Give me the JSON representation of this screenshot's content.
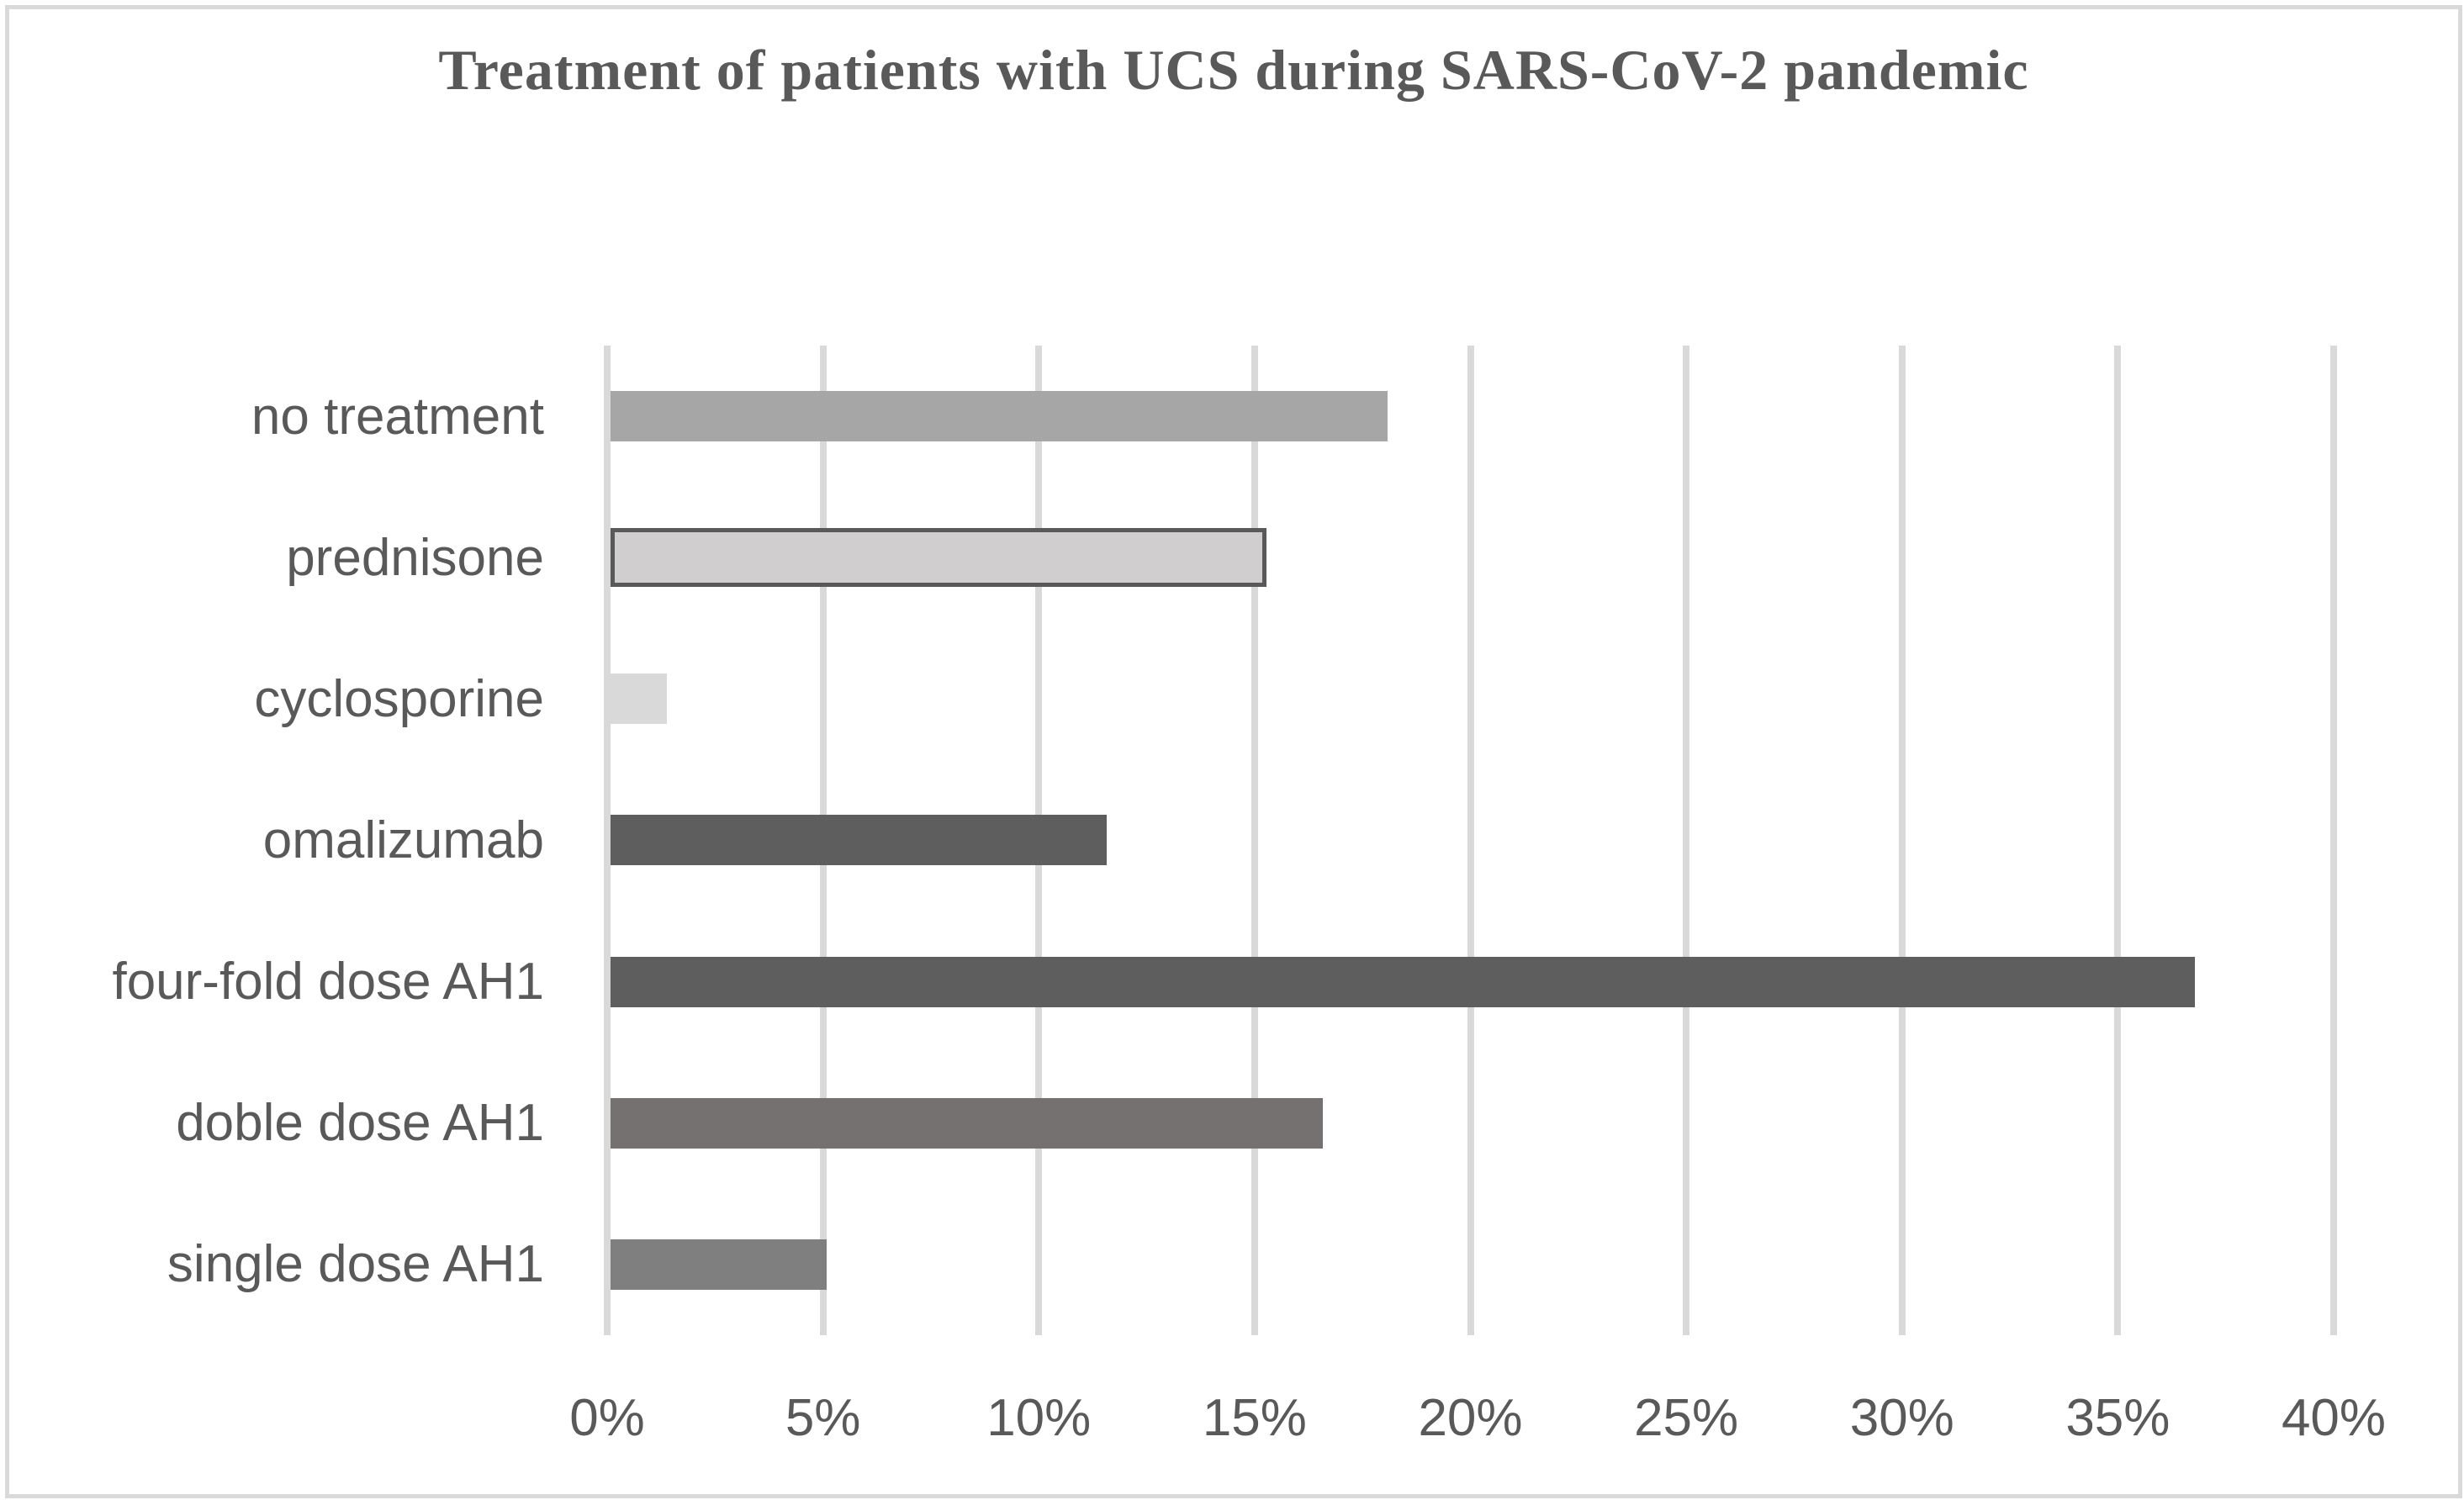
{
  "chart_data": {
    "type": "bar",
    "orientation": "horizontal",
    "title": "Treatment of patients with UCS during SARS-CoV-2 pandemic",
    "categories": [
      "no treatment",
      "prednisone",
      "cyclosporine",
      "omalizumab",
      "four-fold dose AH1",
      "doble dose AH1",
      "single dose AH1"
    ],
    "values": [
      18,
      15,
      1.3,
      11.5,
      36.7,
      16.5,
      5
    ],
    "unit": "%",
    "xlabel": "",
    "ylabel": "",
    "xlim": [
      0,
      40
    ],
    "x_tick_step": 5,
    "x_tick_labels": [
      "0%",
      "5%",
      "10%",
      "15%",
      "20%",
      "25%",
      "30%",
      "35%",
      "40%"
    ],
    "grid": "vertical-only",
    "legend": "none",
    "bar_colors": [
      "#a6a6a6",
      "#d0cece",
      "#d9d9d9",
      "#5e5e5e",
      "#5e5e5e",
      "#767171",
      "#7f7f7f"
    ],
    "bar_border_colors": [
      null,
      "#595959",
      null,
      null,
      null,
      null,
      null
    ],
    "colors": {
      "text": "#595959",
      "gridline": "#d9d9d9",
      "figure_border": "#d9d9d9",
      "background": "#ffffff"
    }
  }
}
